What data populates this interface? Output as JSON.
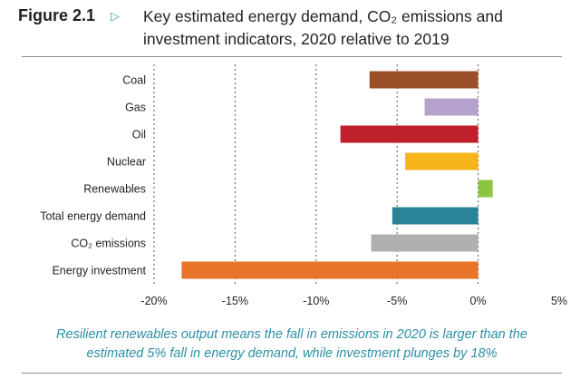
{
  "figure": {
    "label": "Figure 2.1",
    "title_line1": "Key estimated energy demand, CO₂ emissions and",
    "title_line2": "investment indicators, 2020 relative to 2019"
  },
  "caption": {
    "line1": "Resilient renewables output means the fall in emissions in 2020 is larger than the",
    "line2": "estimated 5% fall in energy demand, while investment plunges by 18%"
  },
  "chart_data": {
    "type": "bar",
    "orientation": "horizontal",
    "categories": [
      "Coal",
      "Gas",
      "Oil",
      "Nuclear",
      "Renewables",
      "Total energy demand",
      "CO₂ emissions",
      "Energy investment"
    ],
    "values": [
      -6.7,
      -3.3,
      -8.5,
      -4.5,
      0.9,
      -5.3,
      -6.6,
      -18.3
    ],
    "colors": [
      "#9b4f28",
      "#b4a1cc",
      "#c0202c",
      "#f6b51b",
      "#8cc63f",
      "#2a8498",
      "#b0b0b0",
      "#e8742a"
    ],
    "xlim": [
      -20,
      5
    ],
    "xticks": [
      -20,
      -15,
      -10,
      -5,
      0,
      5
    ],
    "xtick_labels": [
      "-20%",
      "-15%",
      "-10%",
      "-5%",
      "0%",
      "5%"
    ],
    "grid": "vertical dashed",
    "xlabel": "",
    "ylabel": ""
  }
}
